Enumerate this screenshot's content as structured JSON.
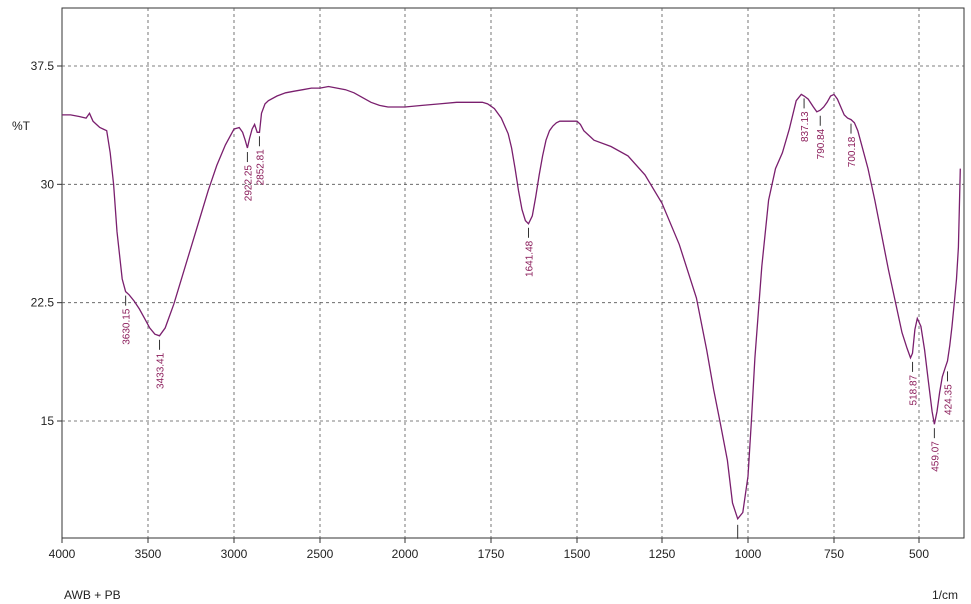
{
  "chart_data": {
    "type": "line",
    "ylabel": "%T",
    "xlabel": "1/cm",
    "sample_label": "AWB + PB",
    "xlim": [
      4000,
      380
    ],
    "ylim": [
      6.5,
      41.5
    ],
    "x_ticks": [
      4000,
      3500,
      3000,
      2500,
      2000,
      1750,
      1500,
      1250,
      1000,
      750,
      500
    ],
    "x_tick_labels": [
      "4000",
      "3500",
      "3000",
      "2500",
      "2000",
      "1750",
      "1500",
      "1250",
      "1000",
      "750",
      "500"
    ],
    "y_ticks": [
      15,
      22.5,
      30,
      37.5
    ],
    "y_tick_labels": [
      "15",
      "22.5",
      "30",
      "37.5"
    ],
    "grid": true,
    "line_color": "#7a1f6e",
    "label_color": "#8a1c5a",
    "series": [
      {
        "x": [
          4000,
          3950,
          3900,
          3860,
          3840,
          3820,
          3800,
          3780,
          3760,
          3740,
          3720,
          3700,
          3680,
          3650,
          3630,
          3610,
          3580,
          3550,
          3520,
          3490,
          3460,
          3433,
          3400,
          3350,
          3300,
          3250,
          3200,
          3150,
          3100,
          3050,
          3000,
          2970,
          2950,
          2935,
          2922,
          2910,
          2895,
          2880,
          2865,
          2852,
          2840,
          2820,
          2800,
          2750,
          2700,
          2650,
          2600,
          2550,
          2500,
          2450,
          2400,
          2350,
          2300,
          2250,
          2200,
          2150,
          2100,
          2050,
          2000,
          1950,
          1900,
          1850,
          1800,
          1775,
          1760,
          1740,
          1720,
          1700,
          1690,
          1680,
          1670,
          1660,
          1650,
          1641,
          1630,
          1620,
          1610,
          1600,
          1590,
          1580,
          1570,
          1560,
          1550,
          1530,
          1510,
          1500,
          1490,
          1480,
          1460,
          1450,
          1400,
          1350,
          1300,
          1250,
          1200,
          1150,
          1120,
          1100,
          1080,
          1060,
          1045,
          1030,
          1015,
          1000,
          990,
          980,
          960,
          940,
          920,
          900,
          880,
          860,
          845,
          837,
          825,
          810,
          800,
          790,
          780,
          770,
          760,
          750,
          740,
          730,
          720,
          710,
          700,
          690,
          680,
          670,
          650,
          630,
          610,
          590,
          570,
          550,
          535,
          525,
          519,
          512,
          505,
          495,
          485,
          475,
          465,
          459,
          452,
          445,
          438,
          430,
          424,
          418,
          412,
          406,
          400,
          395,
          390
        ],
        "y": [
          34.4,
          34.4,
          34.3,
          34.2,
          34.5,
          34.0,
          33.8,
          33.6,
          33.5,
          33.4,
          32.0,
          30.0,
          27.0,
          24.0,
          23.2,
          23.0,
          22.6,
          22.1,
          21.5,
          20.9,
          20.5,
          20.4,
          20.9,
          22.4,
          24.2,
          26.0,
          27.8,
          29.6,
          31.2,
          32.5,
          33.5,
          33.6,
          33.3,
          32.8,
          32.3,
          32.9,
          33.5,
          33.8,
          33.3,
          33.3,
          34.5,
          35.1,
          35.3,
          35.6,
          35.8,
          35.9,
          36.0,
          36.1,
          36.1,
          36.2,
          36.1,
          36.0,
          35.8,
          35.5,
          35.2,
          35.0,
          34.9,
          34.9,
          34.9,
          35.0,
          35.1,
          35.2,
          35.2,
          35.2,
          35.1,
          34.8,
          34.2,
          33.2,
          32.3,
          31.0,
          29.6,
          28.4,
          27.7,
          27.5,
          28.0,
          29.2,
          30.6,
          31.8,
          32.8,
          33.4,
          33.7,
          33.9,
          34.0,
          34.0,
          34.0,
          34.0,
          33.8,
          33.4,
          33.0,
          32.8,
          32.4,
          31.8,
          30.6,
          28.8,
          26.2,
          22.8,
          19.5,
          17.0,
          14.8,
          12.5,
          9.8,
          8.8,
          9.2,
          11.5,
          15.0,
          19.0,
          24.8,
          29.0,
          31.0,
          32.0,
          33.5,
          35.3,
          35.7,
          35.6,
          35.4,
          34.9,
          34.6,
          34.7,
          34.9,
          35.2,
          35.6,
          35.7,
          35.4,
          34.9,
          34.4,
          34.2,
          34.1,
          33.9,
          33.4,
          32.6,
          31.0,
          29.0,
          26.8,
          24.6,
          22.6,
          20.6,
          19.6,
          19.0,
          19.3,
          20.8,
          21.5,
          21.0,
          19.5,
          17.5,
          15.6,
          14.8,
          15.6,
          16.8,
          17.8,
          18.4,
          18.8,
          19.8,
          21.0,
          22.5,
          24.0,
          26.0,
          31.0
        ],
        "stroke": "#7a1f6e"
      }
    ],
    "annotations": [
      {
        "label": "3630.15",
        "x": 3630,
        "y": 23.2
      },
      {
        "label": "3433.41",
        "x": 3433,
        "y": 20.4
      },
      {
        "label": "2922.25",
        "x": 2922,
        "y": 32.3
      },
      {
        "label": "2852.81",
        "x": 2852,
        "y": 33.3
      },
      {
        "label": "1641.48",
        "x": 1641,
        "y": 27.5
      },
      {
        "label": "837.13",
        "x": 837,
        "y": 35.7
      },
      {
        "label": "790.84",
        "x": 790,
        "y": 34.6
      },
      {
        "label": "700.18",
        "x": 700,
        "y": 34.1
      },
      {
        "label": "518.87",
        "x": 519,
        "y": 19.0
      },
      {
        "label": "459.07",
        "x": 459,
        "y": 14.8
      },
      {
        "label": "424.35",
        "x": 424,
        "y": 18.4
      }
    ],
    "marker_1030": {
      "x": 1030,
      "y": 8.8
    }
  }
}
